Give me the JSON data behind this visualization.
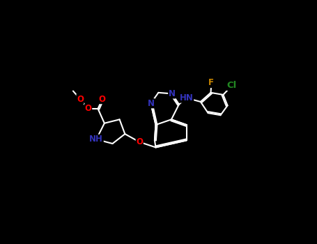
{
  "bg_color": "#000000",
  "bond_color": "#ffffff",
  "bond_width": 1.5,
  "atom_colors": {
    "O": "#ff0000",
    "N": "#3333bb",
    "Cl": "#228822",
    "F": "#cc8800",
    "C": "#ffffff",
    "H": "#ffffff"
  },
  "font_size": 8.5,
  "title": ""
}
